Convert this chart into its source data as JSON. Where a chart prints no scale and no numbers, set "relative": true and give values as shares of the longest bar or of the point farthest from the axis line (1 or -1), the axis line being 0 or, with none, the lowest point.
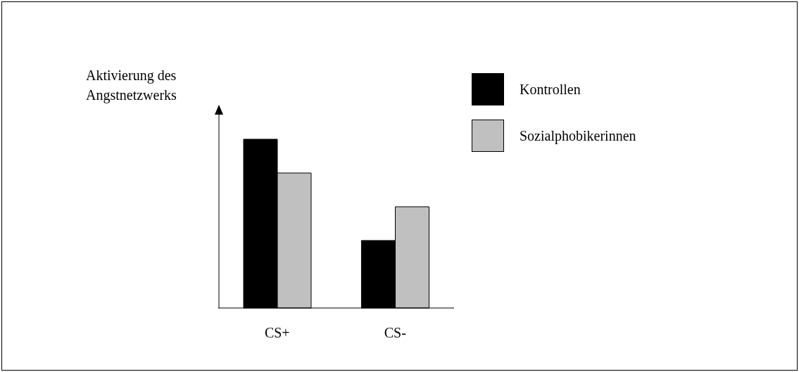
{
  "chart_data": {
    "type": "bar",
    "relative": true,
    "ylabel": "Aktivierung des Angstnetzwerks",
    "categories": [
      "CS+",
      "CS-"
    ],
    "legend": "top right",
    "series": [
      {
        "name": "Kontrollen",
        "color": "#000000",
        "values": [
          1,
          0.4
        ]
      },
      {
        "name": "Sozialphobikerinnen",
        "color": "#c0c0c0",
        "values": [
          0.8,
          0.6
        ]
      }
    ]
  }
}
